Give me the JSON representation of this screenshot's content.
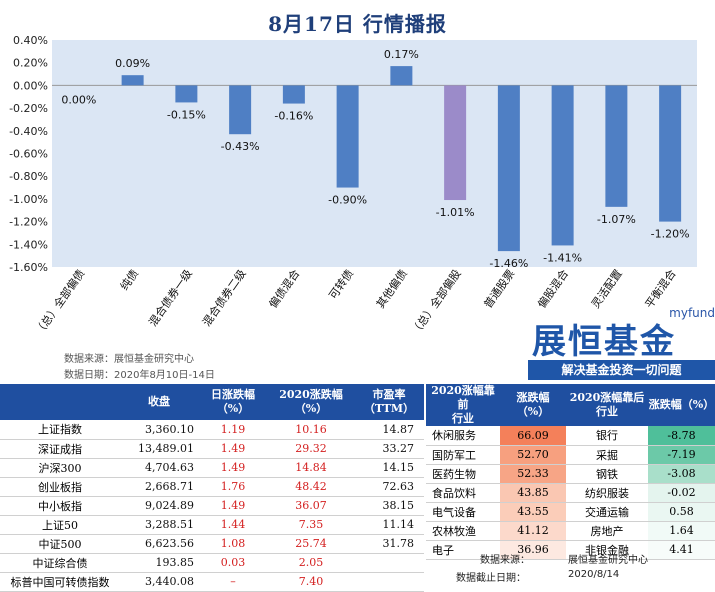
{
  "title": "8月17日  行情播报",
  "chart_data": {
    "type": "bar",
    "categories": [
      "（总）全部偏债",
      "纯债",
      "混合债券一级",
      "混合债券二级",
      "偏债混合",
      "可转债",
      "其他偏债",
      "（总）全部偏股",
      "普通股票",
      "偏股混合",
      "灵活配置",
      "平衡混合"
    ],
    "values": [
      0.0,
      0.09,
      -0.15,
      -0.43,
      -0.16,
      -0.9,
      0.17,
      -1.01,
      -1.46,
      -1.41,
      -1.07,
      -1.2
    ],
    "data_labels": [
      "0.00%",
      "0.09%",
      "-0.15%",
      "-0.43%",
      "-0.16%",
      "-0.90%",
      "0.17%",
      "-1.01%",
      "-1.46%",
      "-1.41%",
      "-1.07%",
      "-1.20%"
    ],
    "highlight_index": 7,
    "ylim": [
      -1.6,
      0.4
    ],
    "yticks": [
      "0.40%",
      "0.20%",
      "0.00%",
      "-0.20%",
      "-0.40%",
      "-0.60%",
      "-0.80%",
      "-1.00%",
      "-1.20%",
      "-1.40%",
      "-1.60%"
    ],
    "colors": {
      "bar": "#4f7fc4",
      "highlight": "#9b8bc9",
      "plot_bg": "#dbe6f4"
    }
  },
  "source": {
    "line1": "数据来源：展恒基金研究中心",
    "line2": "数据日期：2020年8月10日-14日"
  },
  "brand": {
    "en": "myfund",
    "cn": "展恒基金",
    "slogan": "解决基金投资一切问题"
  },
  "market_table": {
    "headers": [
      "",
      "收盘",
      "日涨跌幅\n（%）",
      "2020涨跌幅\n（%）",
      "市盈率\n（TTM）"
    ],
    "rows": [
      {
        "name": "上证指数",
        "close": "3,360.10",
        "day": "1.19",
        "ytd": "10.16",
        "pe": "14.87"
      },
      {
        "name": "深证成指",
        "close": "13,489.01",
        "day": "1.49",
        "ytd": "29.32",
        "pe": "33.27"
      },
      {
        "name": "沪深300",
        "close": "4,704.63",
        "day": "1.49",
        "ytd": "14.84",
        "pe": "14.15"
      },
      {
        "name": "创业板指",
        "close": "2,668.71",
        "day": "1.76",
        "ytd": "48.42",
        "pe": "72.63"
      },
      {
        "name": "中小板指",
        "close": "9,024.89",
        "day": "1.49",
        "ytd": "36.07",
        "pe": "38.15"
      },
      {
        "name": "上证50",
        "close": "3,288.51",
        "day": "1.44",
        "ytd": "7.35",
        "pe": "11.14"
      },
      {
        "name": "中证500",
        "close": "6,623.56",
        "day": "1.08",
        "ytd": "25.74",
        "pe": "31.78"
      },
      {
        "name": "中证综合债",
        "close": "193.85",
        "day": "0.03",
        "ytd": "2.05",
        "pe": ""
      },
      {
        "name": "标普中国可转债指数",
        "close": "3,440.08",
        "day": "–",
        "ytd": "7.40",
        "pe": ""
      }
    ]
  },
  "industry_table": {
    "headers": [
      "2020涨幅靠前\n行业",
      "涨跌幅\n（%）",
      "2020涨幅靠后\n行业",
      "涨跌幅（%）"
    ],
    "rows": [
      {
        "top": "休闲服务",
        "top_val": "66.09",
        "bottom": "银行",
        "bottom_val": "-8.78"
      },
      {
        "top": "国防军工",
        "top_val": "52.70",
        "bottom": "采掘",
        "bottom_val": "-7.19"
      },
      {
        "top": "医药生物",
        "top_val": "52.33",
        "bottom": "钢铁",
        "bottom_val": "-3.08"
      },
      {
        "top": "食品饮料",
        "top_val": "43.85",
        "bottom": "纺织服装",
        "bottom_val": "-0.02"
      },
      {
        "top": "电气设备",
        "top_val": "43.55",
        "bottom": "交通运输",
        "bottom_val": "0.58"
      },
      {
        "top": "农林牧渔",
        "top_val": "41.12",
        "bottom": "房地产",
        "bottom_val": "1.64"
      },
      {
        "top": "电子",
        "top_val": "36.96",
        "bottom": "非银金融",
        "bottom_val": "4.41"
      }
    ],
    "top_colors": [
      "#f4805a",
      "#f7a07f",
      "#f7a586",
      "#fac7b2",
      "#fbcdb9",
      "#fcd9cb",
      "#fde9e1"
    ],
    "bottom_colors": [
      "#4fbf9a",
      "#6cc9a8",
      "#a9dfca",
      "#e4f4ee",
      "#eaf7f2",
      "#f1faf7",
      "#f7fcfa"
    ]
  },
  "footer": {
    "source_label": "数据来源：",
    "source_value": "展恒基金研究中心",
    "date_label": "数据截止日期：",
    "date_value": "2020/8/14"
  }
}
